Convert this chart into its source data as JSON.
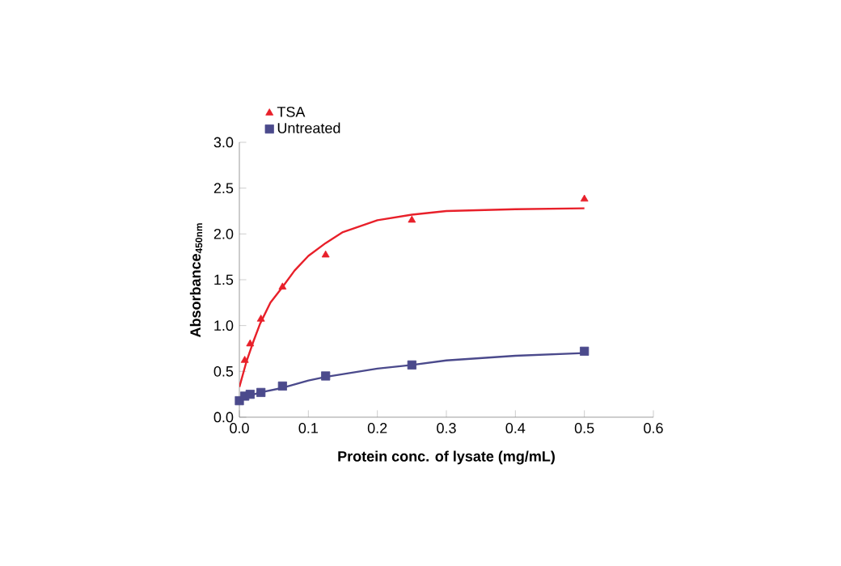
{
  "chart_data": {
    "type": "scatter",
    "xlabel": "Protein conc. of lysate (mg/mL)",
    "ylabel": "Absorbance$_{450nm}$",
    "series": [
      {
        "name": "TSA",
        "color": "#e8202a",
        "marker": "triangle",
        "x": [
          0.0078,
          0.0156,
          0.03125,
          0.0625,
          0.125,
          0.25,
          0.5
        ],
        "values": [
          0.62,
          0.8,
          1.07,
          1.42,
          1.77,
          2.15,
          2.38
        ]
      },
      {
        "name": "Untreated",
        "color": "#4b4a8c",
        "marker": "square",
        "x": [
          0,
          0.0078,
          0.0156,
          0.03125,
          0.0625,
          0.125,
          0.25,
          0.5
        ],
        "values": [
          0.18,
          0.23,
          0.25,
          0.27,
          0.34,
          0.45,
          0.57,
          0.72
        ]
      },
      {
        "type": "line",
        "color": "#e8202a",
        "marker": "none",
        "x": [
          0,
          0.01,
          0.02,
          0.03,
          0.045,
          0.0625,
          0.08,
          0.1,
          0.125,
          0.15,
          0.2,
          0.25,
          0.3,
          0.4,
          0.5
        ],
        "values": [
          0.33,
          0.6,
          0.82,
          1.02,
          1.25,
          1.42,
          1.6,
          1.76,
          1.9,
          2.02,
          2.15,
          2.21,
          2.25,
          2.27,
          2.28
        ]
      },
      {
        "type": "line",
        "color": "#4b4a8c",
        "marker": "none",
        "x": [
          0,
          0.03,
          0.0625,
          0.1,
          0.125,
          0.2,
          0.25,
          0.3,
          0.4,
          0.5
        ],
        "values": [
          0.2,
          0.27,
          0.32,
          0.4,
          0.44,
          0.53,
          0.57,
          0.62,
          0.67,
          0.7
        ]
      }
    ],
    "xlim": [
      0,
      0.6
    ],
    "ylim": [
      0,
      3
    ],
    "xticks": [
      {
        "value": 0,
        "label": "0.0"
      },
      0.1,
      0.2,
      0.3,
      0.4,
      0.5,
      0.6
    ],
    "yticks": [
      {
        "value": 0,
        "label": "0.0"
      },
      0.5,
      {
        "value": 1,
        "label": "1.0"
      },
      1.5,
      {
        "value": 2,
        "label": "2.0"
      },
      2.5,
      {
        "value": 3,
        "label": "3.0"
      }
    ],
    "grid": false,
    "legend": "top left"
  }
}
